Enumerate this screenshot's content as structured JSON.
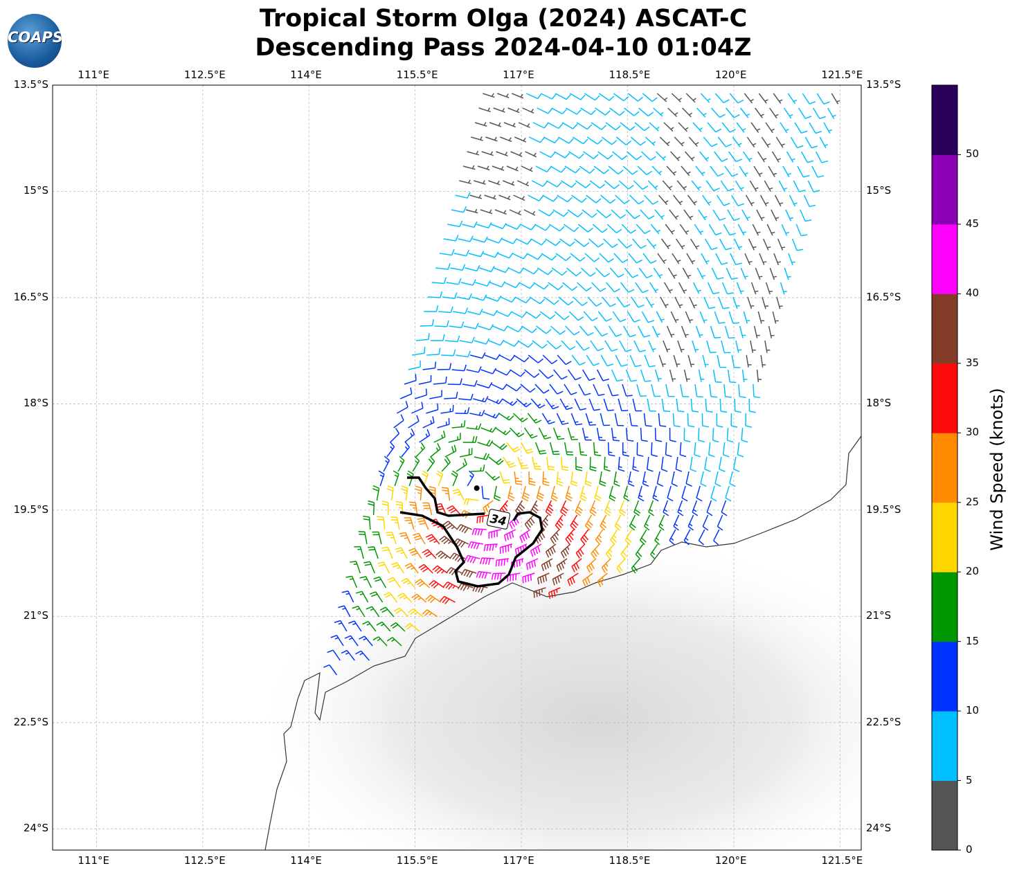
{
  "title": {
    "line1": "Tropical Storm Olga (2024) ASCAT-C",
    "line2": "Descending Pass 2024-04-10 01:04Z"
  },
  "logo": {
    "text": "COAPS"
  },
  "map": {
    "lon_ticks": [
      "111°E",
      "112.5°E",
      "114°E",
      "115.5°E",
      "117°E",
      "118.5°E",
      "120°E",
      "121.5°E"
    ],
    "lon_values": [
      111,
      112.5,
      114,
      115.5,
      117,
      118.5,
      120,
      121.5
    ],
    "lat_ticks": [
      "13.5°S",
      "15°S",
      "16.5°S",
      "18°S",
      "19.5°S",
      "21°S",
      "22.5°S",
      "24°S"
    ],
    "lat_values": [
      13.5,
      15,
      16.5,
      18,
      19.5,
      21,
      22.5,
      24
    ],
    "extent": {
      "lon_min": 110.38,
      "lon_max": 121.8,
      "lat_min": 13.5,
      "lat_max": 24.3
    },
    "storm_center": {
      "lon": 116.37,
      "lat": 19.19
    },
    "contour_label": "34"
  },
  "colorbar": {
    "label": "Wind Speed (knots)",
    "ticks": [
      "0",
      "5",
      "10",
      "15",
      "20",
      "25",
      "30",
      "35",
      "40",
      "45",
      "50"
    ],
    "bounds": [
      0,
      5,
      10,
      15,
      20,
      25,
      30,
      35,
      40,
      45,
      50,
      55
    ],
    "colors": [
      "#555555",
      "#00bfff",
      "#0032ff",
      "#009600",
      "#ffd700",
      "#ff8c00",
      "#ff0a0a",
      "#823c28",
      "#ff00ff",
      "#8c00b4",
      "#2a005a"
    ]
  },
  "chart_data": {
    "type": "wind-barb-map",
    "title": "Tropical Storm Olga (2024) ASCAT-C Descending Pass 2024-04-10 01:04Z",
    "units": "knots",
    "max_wind_approx": 38,
    "contour_kt": 34
  }
}
